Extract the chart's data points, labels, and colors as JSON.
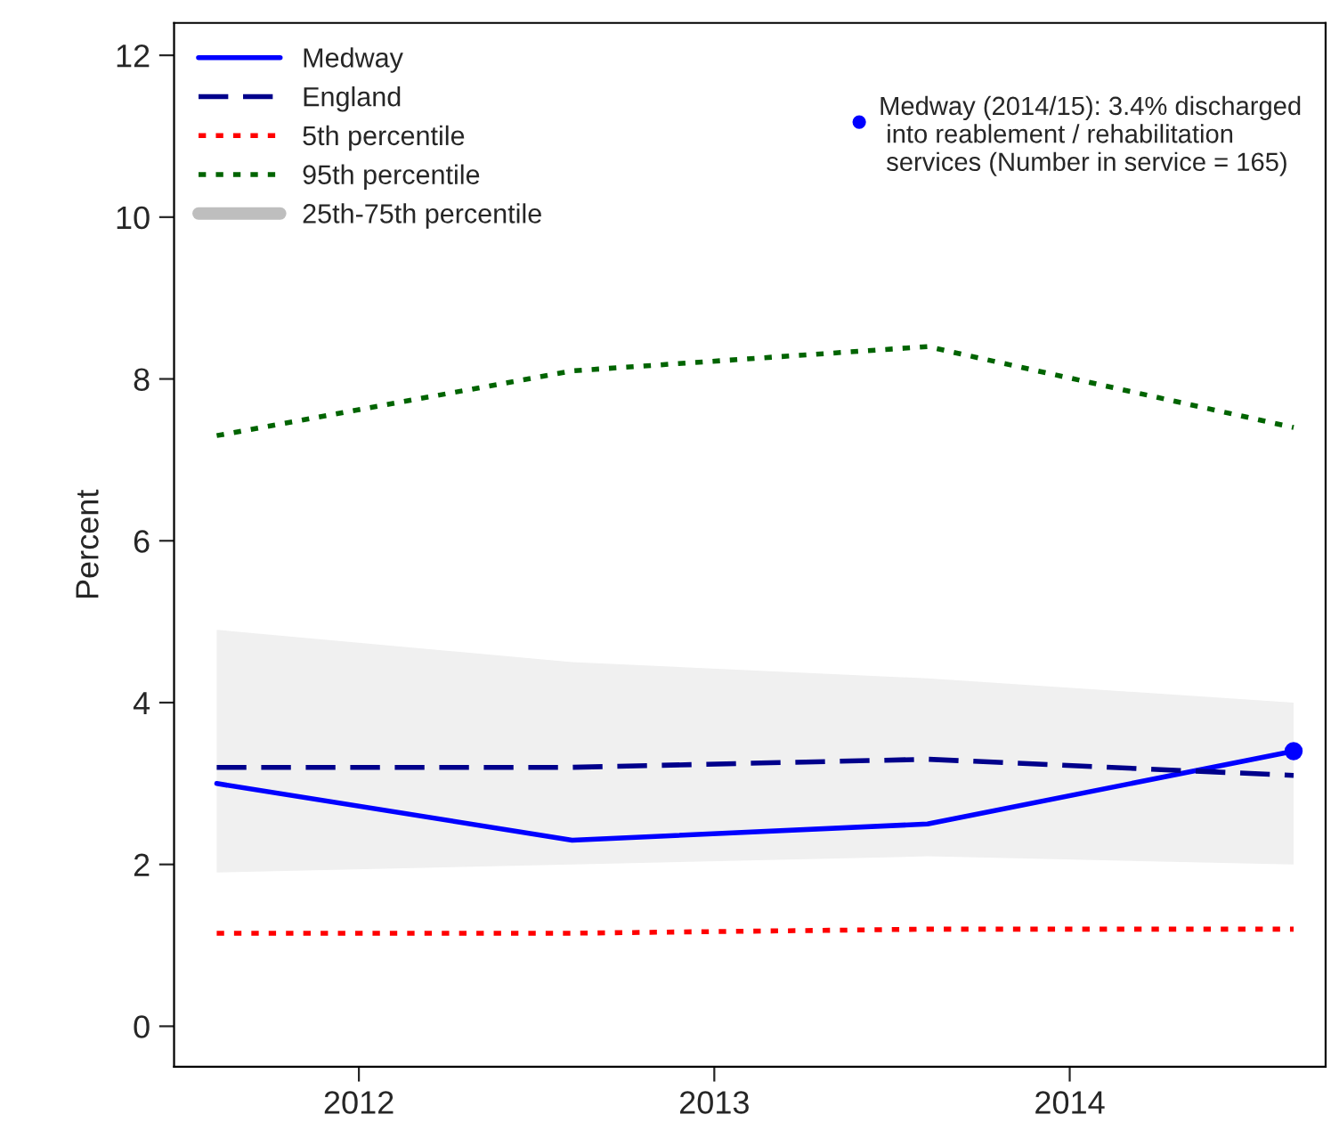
{
  "chart_data": {
    "type": "line",
    "ylabel": "Percent",
    "x": [
      2011.6,
      2012.6,
      2013.6,
      2014.63
    ],
    "xlim": [
      2011.48,
      2014.72
    ],
    "xticks": [
      2012,
      2013,
      2014
    ],
    "ylim": [
      -0.5,
      12.4
    ],
    "yticks": [
      0,
      2,
      4,
      6,
      8,
      10,
      12
    ],
    "legend": "top left",
    "series": [
      {
        "name": "Medway",
        "color": "#0000ff",
        "line_style": "solid",
        "values": [
          3.0,
          2.3,
          2.5,
          3.4
        ]
      },
      {
        "name": "England",
        "color": "#00008b",
        "line_style": "dashed",
        "values": [
          3.2,
          3.2,
          3.3,
          3.1
        ]
      },
      {
        "name": "5th percentile",
        "color": "#ff0000",
        "line_style": "dotted",
        "values": [
          1.15,
          1.15,
          1.2,
          1.2
        ]
      },
      {
        "name": "95th percentile",
        "color": "#006400",
        "line_style": "dotted",
        "values": [
          7.3,
          8.1,
          8.4,
          7.4
        ]
      },
      {
        "name": "25th-75th percentile",
        "type": "area",
        "color": "#bebebe",
        "values": [
          null,
          null,
          null,
          null
        ],
        "lower": [
          1.9,
          2.0,
          2.1,
          2.0
        ],
        "upper": [
          4.9,
          4.5,
          4.3,
          4.0
        ]
      },
      {
        "type": "scatter",
        "color": "#0000ff",
        "x": [
          2014.63
        ],
        "values": [
          3.4
        ]
      }
    ],
    "annotations": [
      "Medway (2014/15): 3.4% discharged\n into reablement / rehabilitation\n services (Number in service = 165)"
    ]
  }
}
